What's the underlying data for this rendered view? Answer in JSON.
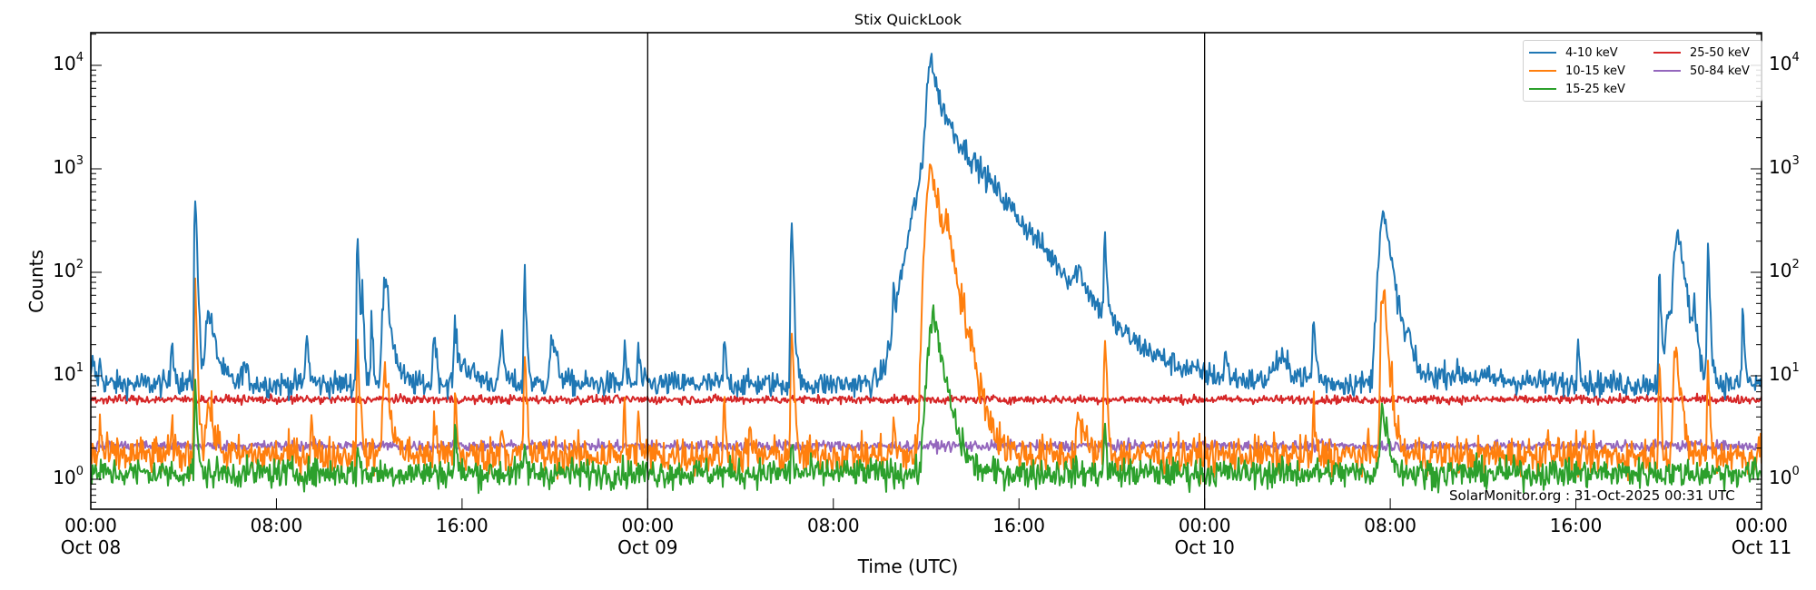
{
  "chart_data": {
    "type": "line",
    "title": "Stix QuickLook",
    "xlabel": "Time (UTC)",
    "ylabel": "Counts",
    "yscale": "log",
    "ylim": [
      0.5,
      20000
    ],
    "xlim_hours": [
      0,
      72
    ],
    "grid": false,
    "legend_position": "upper right",
    "day_separators_hours": [
      24,
      48
    ],
    "x_ticks": [
      {
        "hour": 0,
        "label": "00:00",
        "date": "Oct 08"
      },
      {
        "hour": 8,
        "label": "08:00",
        "date": ""
      },
      {
        "hour": 16,
        "label": "16:00",
        "date": ""
      },
      {
        "hour": 24,
        "label": "00:00",
        "date": "Oct 09"
      },
      {
        "hour": 32,
        "label": "08:00",
        "date": ""
      },
      {
        "hour": 40,
        "label": "16:00",
        "date": ""
      },
      {
        "hour": 48,
        "label": "00:00",
        "date": "Oct 10"
      },
      {
        "hour": 56,
        "label": "08:00",
        "date": ""
      },
      {
        "hour": 64,
        "label": "16:00",
        "date": ""
      },
      {
        "hour": 72,
        "label": "00:00",
        "date": "Oct 11"
      }
    ],
    "y_ticks": [
      {
        "value": 1,
        "base": "10",
        "exp": "0"
      },
      {
        "value": 10,
        "base": "10",
        "exp": "1"
      },
      {
        "value": 100,
        "base": "10",
        "exp": "2"
      },
      {
        "value": 1000,
        "base": "10",
        "exp": "3"
      },
      {
        "value": 10000,
        "base": "10",
        "exp": "4"
      }
    ],
    "series": [
      {
        "name": "4-10 keV",
        "color": "#1f77b4",
        "baseline": 8.3,
        "noise": 0.06,
        "peaks": [
          [
            0.1,
            14,
            0.1
          ],
          [
            0.4,
            13,
            0.08
          ],
          [
            3.5,
            25,
            0.08
          ],
          [
            4.5,
            580,
            0.06
          ],
          [
            5.1,
            42,
            0.25
          ],
          [
            6.6,
            13,
            0.15
          ],
          [
            9.3,
            27,
            0.08
          ],
          [
            11.5,
            260,
            0.06
          ],
          [
            11.7,
            70,
            0.05
          ],
          [
            12.1,
            50,
            0.05
          ],
          [
            12.7,
            80,
            0.2
          ],
          [
            14.8,
            31,
            0.08
          ],
          [
            15.7,
            31,
            0.08
          ],
          [
            16.1,
            13,
            0.5
          ],
          [
            17.7,
            24,
            0.1
          ],
          [
            18.7,
            100,
            0.06
          ],
          [
            19.9,
            22,
            0.2
          ],
          [
            23.0,
            20,
            0.06
          ],
          [
            23.6,
            20,
            0.06
          ],
          [
            27.3,
            24,
            0.06
          ],
          [
            30.2,
            340,
            0.06
          ],
          [
            34.6,
            50,
            0.06
          ],
          [
            34.9,
            15,
            0.2
          ],
          [
            36.0,
            14,
            0.1
          ],
          [
            36.4,
            15,
            0.3
          ],
          [
            36.2,
            11000,
            0.25
          ],
          [
            36.9,
            2500,
            1.5
          ],
          [
            38.5,
            25,
            3.0
          ],
          [
            42.6,
            48,
            0.3
          ],
          [
            43.7,
            250,
            0.06
          ],
          [
            48.9,
            16,
            0.08
          ],
          [
            51.3,
            14,
            0.6
          ],
          [
            52.7,
            35,
            0.08
          ],
          [
            55.7,
            380,
            0.3
          ],
          [
            56.8,
            20,
            0.1
          ],
          [
            58.8,
            10.5,
            2.0
          ],
          [
            64.1,
            30,
            0.06
          ],
          [
            67.6,
            140,
            0.05
          ],
          [
            68.0,
            40,
            0.2
          ],
          [
            68.4,
            270,
            0.25
          ],
          [
            69.1,
            35,
            0.08
          ],
          [
            69.7,
            200,
            0.06
          ],
          [
            71.2,
            55,
            0.05
          ]
        ]
      },
      {
        "name": "10-15 keV",
        "color": "#ff7f0e",
        "baseline": 1.7,
        "noise": 0.09,
        "peaks": [
          [
            0.4,
            3.8,
            0.05
          ],
          [
            3.5,
            3.4,
            0.05
          ],
          [
            4.5,
            85,
            0.06
          ],
          [
            5.1,
            5.5,
            0.2
          ],
          [
            9.5,
            5,
            0.05
          ],
          [
            11.5,
            28,
            0.06
          ],
          [
            12.7,
            10,
            0.2
          ],
          [
            14.8,
            5,
            0.05
          ],
          [
            15.7,
            8,
            0.05
          ],
          [
            17.7,
            4.5,
            0.06
          ],
          [
            18.7,
            18,
            0.06
          ],
          [
            23.0,
            5.5,
            0.05
          ],
          [
            23.6,
            5.5,
            0.05
          ],
          [
            27.3,
            6,
            0.05
          ],
          [
            28.4,
            4,
            0.05
          ],
          [
            30.2,
            35,
            0.06
          ],
          [
            34.6,
            4.5,
            0.05
          ],
          [
            36.2,
            1100,
            0.3
          ],
          [
            36.9,
            200,
            0.4
          ],
          [
            42.6,
            4.2,
            0.2
          ],
          [
            43.7,
            30,
            0.06
          ],
          [
            52.7,
            5.5,
            0.05
          ],
          [
            55.7,
            70,
            0.15
          ],
          [
            62.8,
            4.5,
            0.05
          ],
          [
            67.6,
            12,
            0.06
          ],
          [
            68.3,
            20,
            0.15
          ],
          [
            69.7,
            13,
            0.06
          ]
        ]
      },
      {
        "name": "15-25 keV",
        "color": "#2ca02c",
        "baseline": 1.15,
        "noise": 0.07,
        "peaks": [
          [
            4.5,
            11,
            0.05
          ],
          [
            11.5,
            2.4,
            0.05
          ],
          [
            15.7,
            3.8,
            0.05
          ],
          [
            18.7,
            2.5,
            0.05
          ],
          [
            30.2,
            2.5,
            0.05
          ],
          [
            36.3,
            38,
            0.35
          ],
          [
            43.7,
            4,
            0.05
          ],
          [
            55.7,
            5,
            0.2
          ]
        ]
      },
      {
        "name": "25-50 keV",
        "color": "#d62728",
        "baseline": 5.9,
        "noise": 0.02,
        "peaks": []
      },
      {
        "name": "50-84 keV",
        "color": "#9467bd",
        "baseline": 2.1,
        "noise": 0.025,
        "peaks": []
      }
    ]
  },
  "legend": {
    "items": [
      {
        "label": "4-10 keV",
        "color": "#1f77b4"
      },
      {
        "label": "10-15 keV",
        "color": "#ff7f0e"
      },
      {
        "label": "15-25 keV",
        "color": "#2ca02c"
      },
      {
        "label": "25-50 keV",
        "color": "#d62728"
      },
      {
        "label": "50-84 keV",
        "color": "#9467bd"
      }
    ]
  },
  "credit": "SolarMonitor.org : 31-Oct-2025 00:31 UTC"
}
